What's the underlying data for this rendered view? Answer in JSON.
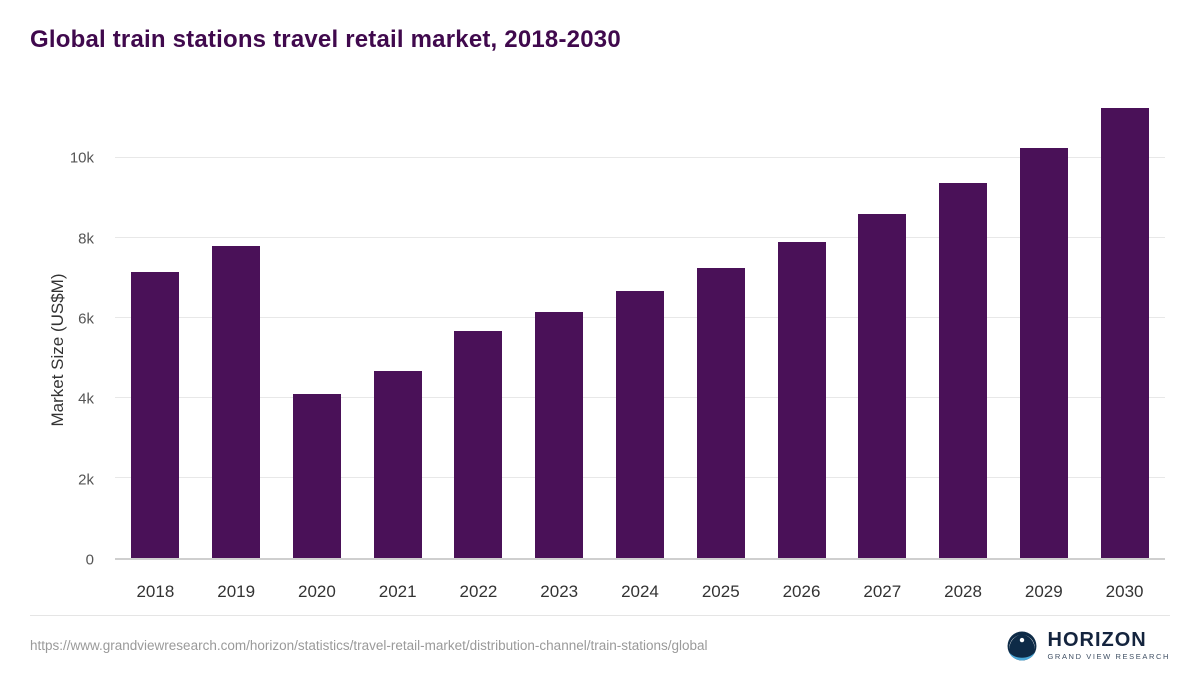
{
  "chart_data": {
    "type": "bar",
    "title": "Global train stations travel retail market, 2018-2030",
    "ylabel": "Market Size (US$M)",
    "xlabel": "",
    "categories": [
      "2018",
      "2019",
      "2020",
      "2021",
      "2022",
      "2023",
      "2024",
      "2025",
      "2026",
      "2027",
      "2028",
      "2029",
      "2030"
    ],
    "values": [
      7150,
      7800,
      4100,
      4670,
      5670,
      6140,
      6670,
      7240,
      7890,
      8600,
      9380,
      10250,
      11250
    ],
    "ylim": [
      0,
      11700
    ],
    "yticks": [
      {
        "value": 0,
        "label": "0"
      },
      {
        "value": 2000,
        "label": "2k"
      },
      {
        "value": 4000,
        "label": "4k"
      },
      {
        "value": 6000,
        "label": "6k"
      },
      {
        "value": 8000,
        "label": "8k"
      },
      {
        "value": 10000,
        "label": "10k"
      }
    ],
    "grid": true,
    "legend": "none",
    "bar_color": "#4a1158",
    "title_color": "#40094d"
  },
  "footer": {
    "url": "https://www.grandviewresearch.com/horizon/statistics/travel-retail-market/distribution-channel/train-stations/global",
    "logo": {
      "name": "HORIZON",
      "subtitle": "GRAND VIEW RESEARCH",
      "icon": "horizon-circle-icon",
      "icon_color": "#0e2b47",
      "icon_accent": "#4aa8d8"
    }
  }
}
